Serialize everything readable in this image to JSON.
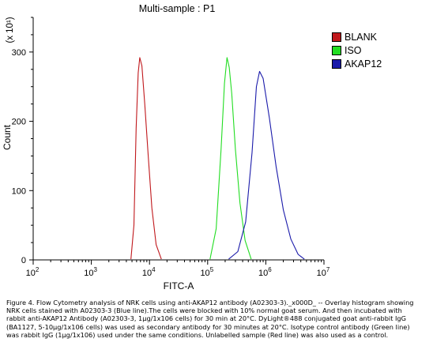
{
  "chart_data": {
    "type": "line",
    "title": "Multi-sample : P1",
    "xlabel": "FITC-A",
    "ylabel": "Count",
    "y_multiplier": "(x 10¹)",
    "xscale": "log",
    "xlim": [
      100,
      10000000
    ],
    "ylim": [
      0,
      350
    ],
    "x_ticks": [
      {
        "base": "10",
        "exp": "2"
      },
      {
        "base": "10",
        "exp": "3"
      },
      {
        "base": "10",
        "exp": "4"
      },
      {
        "base": "10",
        "exp": "5"
      },
      {
        "base": "10",
        "exp": "6"
      },
      {
        "base": "10",
        "exp": "7"
      }
    ],
    "x_tick_values": [
      100,
      1000,
      10000,
      100000,
      1000000,
      10000000
    ],
    "y_ticks": [
      "0",
      "100",
      "200",
      "300"
    ],
    "y_tick_values": [
      0,
      100,
      200,
      300
    ],
    "series": [
      {
        "name": "BLANK",
        "color": "#c0181c",
        "x": [
          4800,
          5400,
          5900,
          6400,
          6800,
          7400,
          8300,
          9500,
          11000,
          13000,
          16000
        ],
        "y": [
          1,
          50,
          190,
          270,
          292,
          280,
          225,
          150,
          75,
          22,
          1
        ]
      },
      {
        "name": "ISO",
        "color": "#22dd22",
        "x": [
          110000,
          140000,
          170000,
          195000,
          215000,
          235000,
          260000,
          300000,
          360000,
          440000,
          560000
        ],
        "y": [
          1,
          45,
          160,
          255,
          292,
          278,
          240,
          160,
          82,
          28,
          1
        ]
      },
      {
        "name": "AKAP12",
        "color": "#1a1aaa",
        "x": [
          230000,
          330000,
          450000,
          580000,
          690000,
          780000,
          900000,
          1150000,
          1500000,
          2000000,
          2700000,
          3600000,
          4600000
        ],
        "y": [
          1,
          12,
          55,
          155,
          250,
          272,
          262,
          205,
          135,
          72,
          30,
          8,
          1
        ]
      }
    ]
  },
  "caption": {
    "line1": "Figure 4. Flow Cytometry analysis of NRK cells using anti-AKAP12 antibody (A02303-3)._x000D_ -- Overlay histogram showing",
    "line2": "NRK cells stained with A02303-3 (Blue line).The cells were blocked with 10% normal goat serum. And then incubated with",
    "line3": "rabbit anti-AKAP12 Antibody (A02303-3, 1µg/1x106 cells) for 30 min at 20°C. DyLight®488 conjugated goat anti-rabbit IgG",
    "line4": "(BA1127, 5-10µg/1x106 cells) was used as secondary antibody for 30 minutes at 20°C. Isotype control antibody (Green line)",
    "line5": "was rabbit IgG (1µg/1x106) used under the same conditions. Unlabelled sample (Red line) was also used as a control."
  }
}
